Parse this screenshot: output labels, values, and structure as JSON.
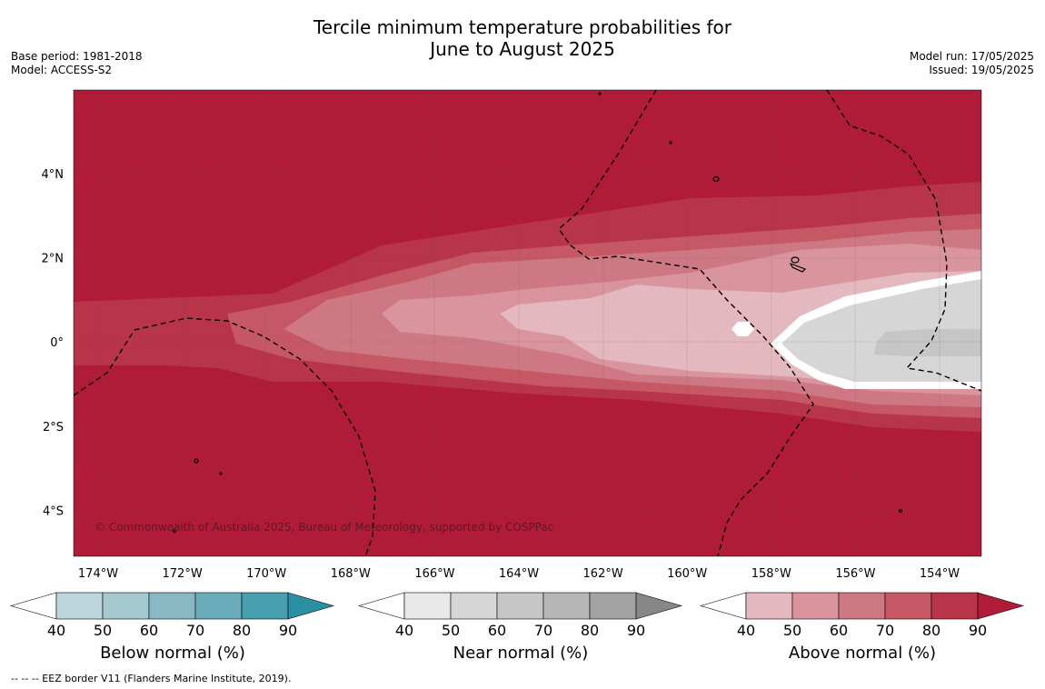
{
  "title_line1": "Tercile minimum temperature probabilities for",
  "title_line2": "June to August 2025",
  "base_period": "Base period: 1981-2018",
  "model": "Model: ACCESS-S2",
  "model_run": "Model run: 17/05/2025",
  "issued": "Issued: 19/05/2025",
  "copyright": "© Commonwealth of Australia 2025, Bureau of Meteorology, supported by COSPPac",
  "eez_note": "--  --  -- EEZ border V11 (Flanders Marine Institute, 2019).",
  "map": {
    "lon_range": [
      -174.6,
      -152.9
    ],
    "lat_range": [
      -5.0,
      6.0
    ],
    "lon_ticks": [
      "174°W",
      "172°W",
      "170°W",
      "168°W",
      "166°W",
      "164°W",
      "162°W",
      "160°W",
      "158°W",
      "156°W",
      "154°W"
    ],
    "lat_ticks": [
      "4°N",
      "2°N",
      "0°",
      "2°S",
      "4°S"
    ]
  },
  "colorbars": [
    {
      "id": "below",
      "title": "Below normal (%)",
      "ticks": [
        "40",
        "50",
        "60",
        "70",
        "80",
        "90"
      ],
      "colors": [
        "#ffffff",
        "#bdd6dc",
        "#a6c8cf",
        "#89b8c4",
        "#6badba",
        "#489faf",
        "#2a8fa3"
      ]
    },
    {
      "id": "near",
      "title": "Near normal (%)",
      "ticks": [
        "40",
        "50",
        "60",
        "70",
        "80",
        "90"
      ],
      "colors": [
        "#ffffff",
        "#e8e8e8",
        "#d6d6d6",
        "#c6c6c6",
        "#b6b6b6",
        "#a3a3a3",
        "#878787"
      ]
    },
    {
      "id": "above",
      "title": "Above normal (%)",
      "ticks": [
        "40",
        "50",
        "60",
        "70",
        "80",
        "90"
      ],
      "colors": [
        "#ffffff",
        "#e3b8be",
        "#d9949e",
        "#ce7883",
        "#c55864",
        "#b83449",
        "#b01c38"
      ]
    }
  ]
}
